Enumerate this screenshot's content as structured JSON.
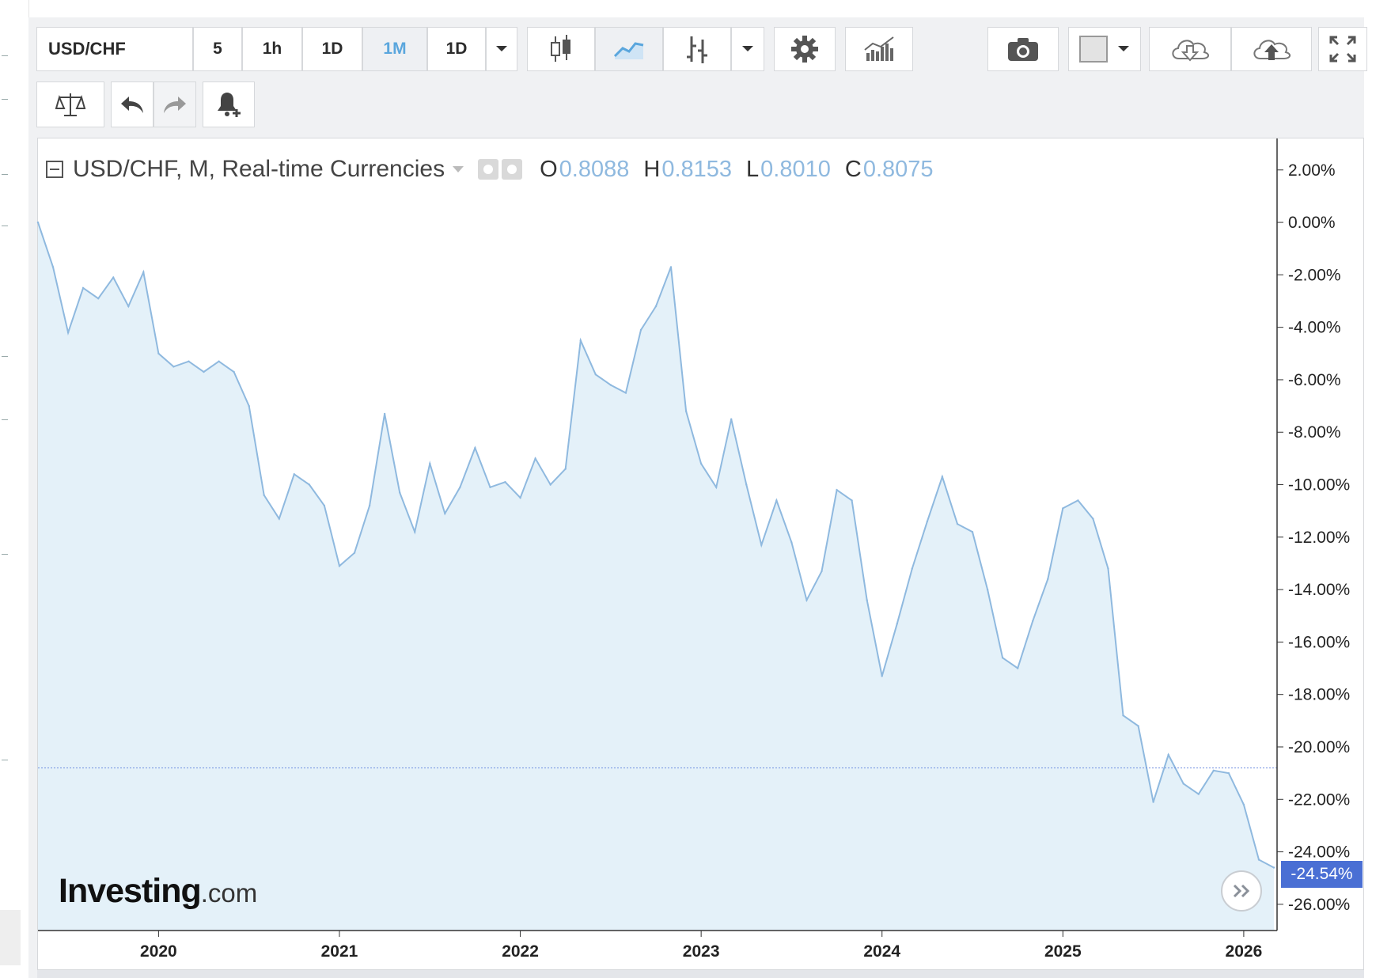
{
  "toolbar": {
    "symbol": "USD/CHF",
    "intervals": [
      "5",
      "1h",
      "1D",
      "1M",
      "1D"
    ],
    "active_interval": "1M"
  },
  "legend": {
    "title": "USD/CHF, M, Real-time Currencies",
    "open_label": "O",
    "open": "0.8088",
    "high_label": "H",
    "high": "0.8153",
    "low_label": "L",
    "low": "0.8010",
    "close_label": "C",
    "close": "0.8075"
  },
  "brand": {
    "name": "Investing",
    "suffix": ".com"
  },
  "colors": {
    "line": "#8fb9df",
    "area": "#e4f1f9",
    "badge": "#4a6fd4",
    "active": "#5aa6dd"
  },
  "chart_data": {
    "type": "area",
    "title": "USD/CHF, M, Real-time Currencies",
    "xlabel": "",
    "ylabel": "",
    "unit": "%",
    "x_start": "2019-05",
    "x_step": "1 month",
    "x_ticks": [
      "2020",
      "2021",
      "2022",
      "2023",
      "2024",
      "2025",
      "2026"
    ],
    "y_ticks": [
      "2.00%",
      "0.00%",
      "-2.00%",
      "-4.00%",
      "-6.00%",
      "-8.00%",
      "-10.00%",
      "-12.00%",
      "-14.00%",
      "-16.00%",
      "-18.00%",
      "-20.00%",
      "-22.00%",
      "-24.00%",
      "-26.00%"
    ],
    "ylim": [
      -27.0,
      3.2
    ],
    "reference_line": -20.8,
    "last_value_label": "-24.54%",
    "series": [
      {
        "values": [
          0.0,
          -1.7,
          -4.2,
          -2.5,
          -2.9,
          -2.1,
          -3.2,
          -1.9,
          -5.0,
          -5.5,
          -5.3,
          -5.7,
          -5.3,
          -5.7,
          -7.0,
          -10.4,
          -11.3,
          -9.6,
          -10.0,
          -10.8,
          -13.1,
          -12.6,
          -10.8,
          -7.3,
          -10.3,
          -11.8,
          -9.2,
          -11.1,
          -10.1,
          -8.6,
          -10.1,
          -9.9,
          -10.5,
          -9.0,
          -10.0,
          -9.4,
          -4.5,
          -5.8,
          -6.2,
          -6.5,
          -4.1,
          -3.2,
          -1.7,
          -7.2,
          -9.2,
          -10.1,
          -7.5,
          -10.0,
          -12.3,
          -10.6,
          -12.2,
          -14.4,
          -13.3,
          -10.2,
          -10.6,
          -14.4,
          -17.3,
          -15.3,
          -13.2,
          -11.4,
          -9.7,
          -11.5,
          -11.8,
          -14.0,
          -16.6,
          -17.0,
          -15.2,
          -13.6,
          -10.9,
          -10.6,
          -11.3,
          -13.2,
          -18.8,
          -19.2,
          -22.1,
          -20.3,
          -21.4,
          -21.8,
          -20.9,
          -21.0,
          -22.2,
          -24.3,
          -24.6
        ]
      }
    ]
  }
}
